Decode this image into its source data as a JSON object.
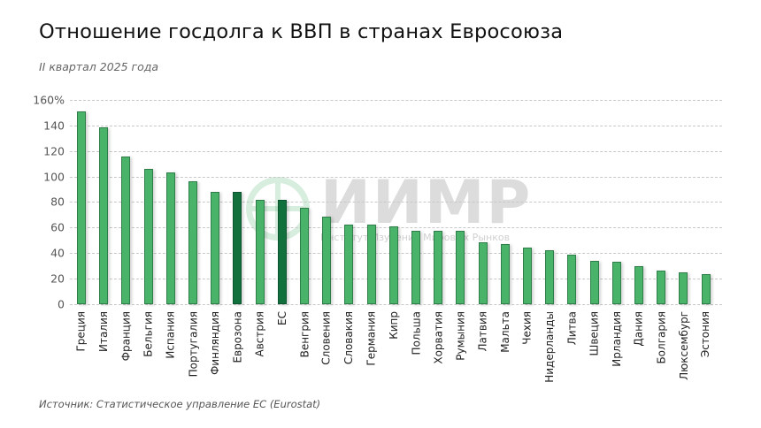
{
  "header": {
    "title": "Отношение госдолга к ВВП в странах Евросоюза",
    "subtitle": "II квартал 2025 года"
  },
  "watermark": {
    "name": "ИИМР",
    "subtitle": "Институт Изучения Мировых Рынков"
  },
  "footer": {
    "source": "Источник: Статистическое управление ЕС (Eurostat)"
  },
  "colors": {
    "bar": "#49b36a",
    "bar_highlight": "#12703d",
    "grid": "#c8c8c8"
  },
  "chart_data": {
    "type": "bar",
    "title": "Отношение госдолга к ВВП в странах Евросоюза",
    "subtitle": "II квартал 2025 года",
    "xlabel": "",
    "ylabel": "",
    "ylim": [
      0,
      160
    ],
    "yticks": [
      "0",
      "20",
      "40",
      "60",
      "80",
      "100",
      "120",
      "140",
      "160%"
    ],
    "grid": true,
    "legend": null,
    "categories": [
      "Греция",
      "Италия",
      "Франция",
      "Бельгия",
      "Испания",
      "Португалия",
      "Финляндия",
      "Еврозона",
      "Австрия",
      "ЕС",
      "Венгрия",
      "Словения",
      "Словакия",
      "Германия",
      "Кипр",
      "Польша",
      "Хорватия",
      "Румыния",
      "Латвия",
      "Мальта",
      "Чехия",
      "Нидерланды",
      "Литва",
      "Швеция",
      "Ирландия",
      "Дания",
      "Болгария",
      "Люксембург",
      "Эстония"
    ],
    "values": [
      151.2,
      138.3,
      115.6,
      106.1,
      103.4,
      96.4,
      88.2,
      88.2,
      81.9,
      81.9,
      75.6,
      68.8,
      62.5,
      62.5,
      61.0,
      57.7,
      57.7,
      57.4,
      48.2,
      47.0,
      44.0,
      42.5,
      39.0,
      33.8,
      33.0,
      30.0,
      26.3,
      25.0,
      23.4
    ],
    "highlighted": [
      "Еврозона",
      "ЕС"
    ],
    "source": "Источник: Статистическое управление ЕС (Eurostat)"
  }
}
